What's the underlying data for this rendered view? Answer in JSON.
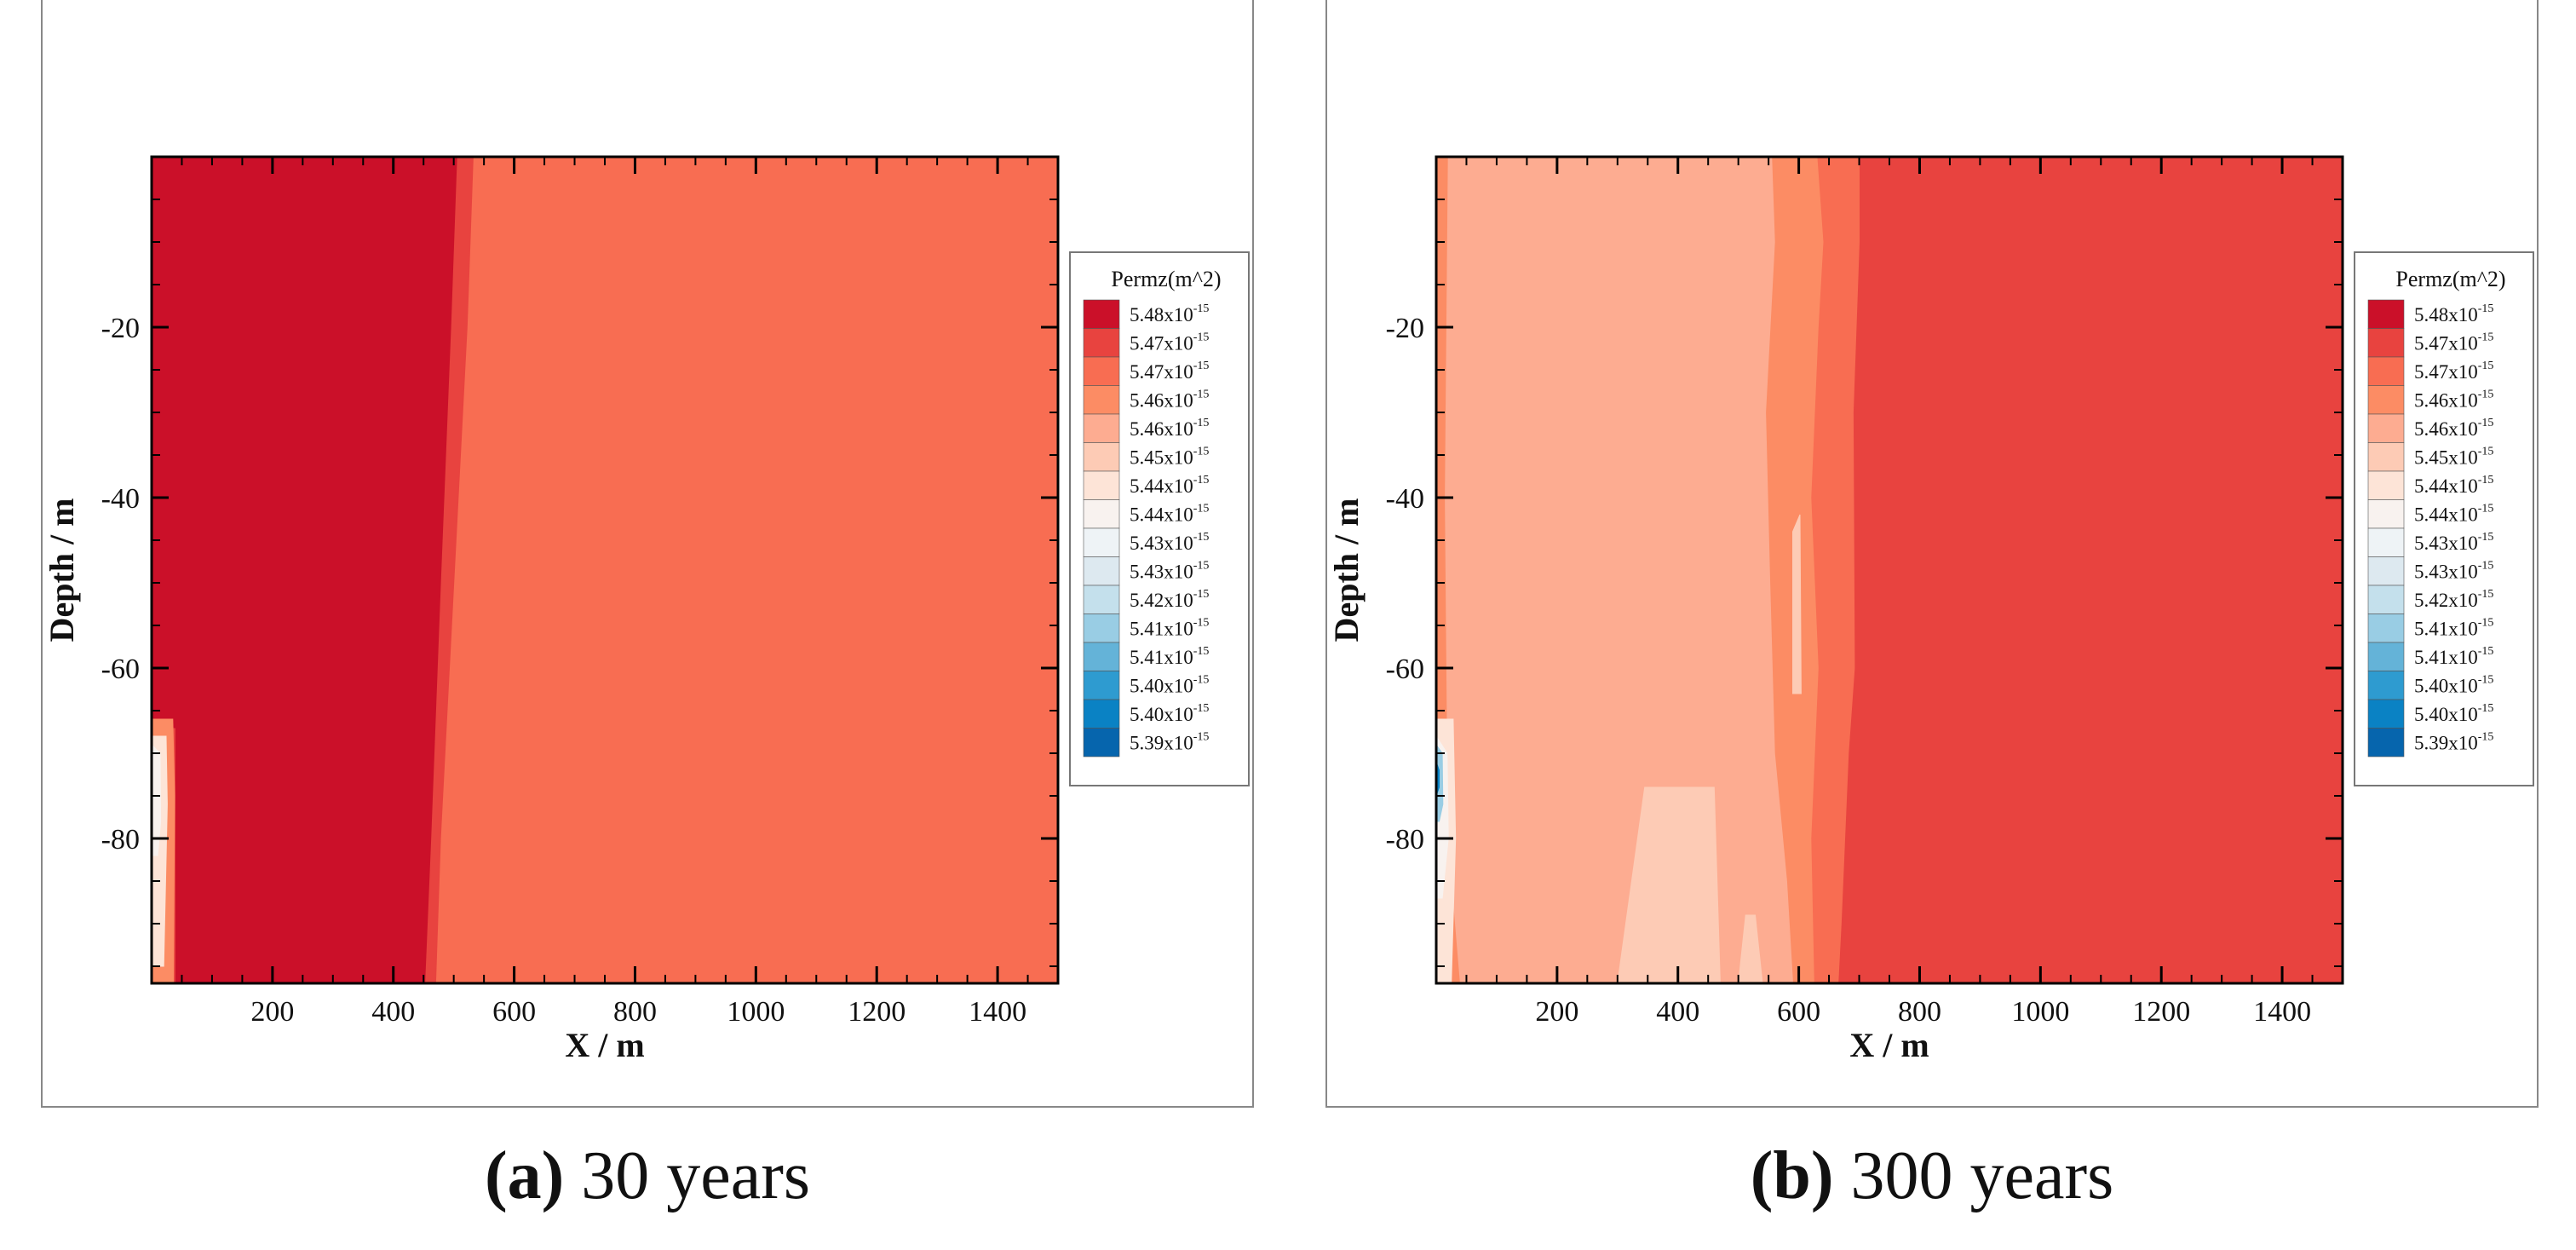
{
  "figure": {
    "legend_title": "Permz(m^2)",
    "legend_levels": [
      {
        "mantissa": "5.48x10",
        "exponent": "-15",
        "color": "#cb1029"
      },
      {
        "mantissa": "5.47x10",
        "exponent": "-15",
        "color": "#e8433f"
      },
      {
        "mantissa": "5.47x10",
        "exponent": "-15",
        "color": "#f86d52"
      },
      {
        "mantissa": "5.46x10",
        "exponent": "-15",
        "color": "#fc8c64"
      },
      {
        "mantissa": "5.46x10",
        "exponent": "-15",
        "color": "#fdac91"
      },
      {
        "mantissa": "5.45x10",
        "exponent": "-15",
        "color": "#fdcbb5"
      },
      {
        "mantissa": "5.44x10",
        "exponent": "-15",
        "color": "#fde4d7"
      },
      {
        "mantissa": "5.44x10",
        "exponent": "-15",
        "color": "#f8f2ef"
      },
      {
        "mantissa": "5.43x10",
        "exponent": "-15",
        "color": "#eef3f6"
      },
      {
        "mantissa": "5.43x10",
        "exponent": "-15",
        "color": "#dde9f0"
      },
      {
        "mantissa": "5.42x10",
        "exponent": "-15",
        "color": "#c4e0ec"
      },
      {
        "mantissa": "5.41x10",
        "exponent": "-15",
        "color": "#99cde4"
      },
      {
        "mantissa": "5.41x10",
        "exponent": "-15",
        "color": "#64b3d8"
      },
      {
        "mantissa": "5.40x10",
        "exponent": "-15",
        "color": "#2e9bd0"
      },
      {
        "mantissa": "5.40x10",
        "exponent": "-15",
        "color": "#0a82c4"
      },
      {
        "mantissa": "5.39x10",
        "exponent": "-15",
        "color": "#0665ad"
      }
    ]
  },
  "chart_data": [
    {
      "type": "heatmap",
      "panel_id": "a",
      "caption_letter": "(a)",
      "caption_text": " 30 years",
      "xlabel": "X / m",
      "ylabel": "Depth / m",
      "xlim": [
        0,
        1500
      ],
      "ylim": [
        -97,
        0
      ],
      "xticks": [
        200,
        400,
        600,
        800,
        1000,
        1200,
        1400
      ],
      "yticks": [
        -20,
        -40,
        -60,
        -80
      ],
      "regions": [
        {
          "color_level": 2,
          "polygon": [
            [
              0,
              0
            ],
            [
              1500,
              0
            ],
            [
              1500,
              -97
            ],
            [
              0,
              -97
            ]
          ]
        },
        {
          "color_level": 1,
          "polygon": [
            [
              0,
              0
            ],
            [
              532,
              0
            ],
            [
              522,
              -20
            ],
            [
              500,
              -50
            ],
            [
              478,
              -80
            ],
            [
              470,
              -97
            ],
            [
              0,
              -97
            ]
          ]
        },
        {
          "color_level": 0,
          "polygon": [
            [
              0,
              0
            ],
            [
              505,
              0
            ],
            [
              495,
              -20
            ],
            [
              478,
              -50
            ],
            [
              462,
              -80
            ],
            [
              452,
              -97
            ],
            [
              40,
              -97
            ],
            [
              40,
              -67
            ],
            [
              0,
              -67
            ]
          ]
        },
        {
          "color_level": 3,
          "polygon": [
            [
              0,
              -66
            ],
            [
              35,
              -66
            ],
            [
              38,
              -75
            ],
            [
              36,
              -97
            ],
            [
              0,
              -97
            ]
          ]
        },
        {
          "color_level": 6,
          "polygon": [
            [
              0,
              -68
            ],
            [
              24,
              -68
            ],
            [
              26,
              -76
            ],
            [
              20,
              -95
            ],
            [
              0,
              -95
            ]
          ]
        },
        {
          "color_level": 7,
          "polygon": [
            [
              0,
              -69
            ],
            [
              14,
              -70
            ],
            [
              15,
              -78
            ],
            [
              10,
              -82
            ],
            [
              0,
              -82
            ]
          ]
        }
      ]
    },
    {
      "type": "heatmap",
      "panel_id": "b",
      "caption_letter": "(b)",
      "caption_text": " 300 years",
      "xlabel": "X / m",
      "ylabel": "Depth / m",
      "xlim": [
        0,
        1500
      ],
      "ylim": [
        -97,
        0
      ],
      "xticks": [
        200,
        400,
        600,
        800,
        1000,
        1200,
        1400
      ],
      "yticks": [
        -20,
        -40,
        -60,
        -80
      ],
      "regions": [
        {
          "color_level": 1,
          "polygon": [
            [
              0,
              0
            ],
            [
              1500,
              0
            ],
            [
              1500,
              -97
            ],
            [
              0,
              -97
            ]
          ]
        },
        {
          "color_level": 2,
          "polygon": [
            [
              0,
              0
            ],
            [
              700,
              0
            ],
            [
              700,
              -10
            ],
            [
              690,
              -30
            ],
            [
              692,
              -60
            ],
            [
              682,
              -70
            ],
            [
              670,
              -90
            ],
            [
              665,
              -97
            ],
            [
              0,
              -97
            ]
          ]
        },
        {
          "color_level": 3,
          "polygon": [
            [
              0,
              0
            ],
            [
              630,
              0
            ],
            [
              640,
              -10
            ],
            [
              632,
              -20
            ],
            [
              620,
              -40
            ],
            [
              632,
              -60
            ],
            [
              620,
              -80
            ],
            [
              625,
              -97
            ],
            [
              0,
              -97
            ]
          ]
        },
        {
          "color_level": 4,
          "polygon": [
            [
              20,
              0
            ],
            [
              555,
              0
            ],
            [
              560,
              -10
            ],
            [
              545,
              -30
            ],
            [
              552,
              -50
            ],
            [
              560,
              -70
            ],
            [
              580,
              -85
            ],
            [
              590,
              -97
            ],
            [
              40,
              -97
            ],
            [
              20,
              -80
            ],
            [
              15,
              -40
            ]
          ]
        },
        {
          "color_level": 5,
          "polygon": [
            [
              300,
              -97
            ],
            [
              345,
              -74
            ],
            [
              385,
              -74
            ],
            [
              460,
              -74
            ],
            [
              470,
              -97
            ]
          ]
        },
        {
          "color_level": 5,
          "polygon": [
            [
              500,
              -97
            ],
            [
              512,
              -89
            ],
            [
              528,
              -89
            ],
            [
              540,
              -97
            ]
          ]
        },
        {
          "color_level": 5,
          "polygon": [
            [
              590,
              -44
            ],
            [
              602,
              -42
            ],
            [
              604,
              -63
            ],
            [
              590,
              -63
            ]
          ]
        },
        {
          "color_level": 6,
          "polygon": [
            [
              0,
              -66
            ],
            [
              28,
              -66
            ],
            [
              32,
              -80
            ],
            [
              25,
              -97
            ],
            [
              0,
              -97
            ]
          ]
        },
        {
          "color_level": 7,
          "polygon": [
            [
              0,
              -68
            ],
            [
              18,
              -70
            ],
            [
              20,
              -80
            ],
            [
              10,
              -87
            ],
            [
              0,
              -87
            ]
          ]
        },
        {
          "color_level": 11,
          "polygon": [
            [
              0,
              -69
            ],
            [
              10,
              -70
            ],
            [
              11,
              -76
            ],
            [
              5,
              -78
            ],
            [
              0,
              -78
            ]
          ]
        },
        {
          "color_level": 14,
          "polygon": [
            [
              0,
              -71
            ],
            [
              5,
              -72
            ],
            [
              5,
              -74
            ],
            [
              0,
              -75
            ]
          ]
        }
      ]
    }
  ]
}
